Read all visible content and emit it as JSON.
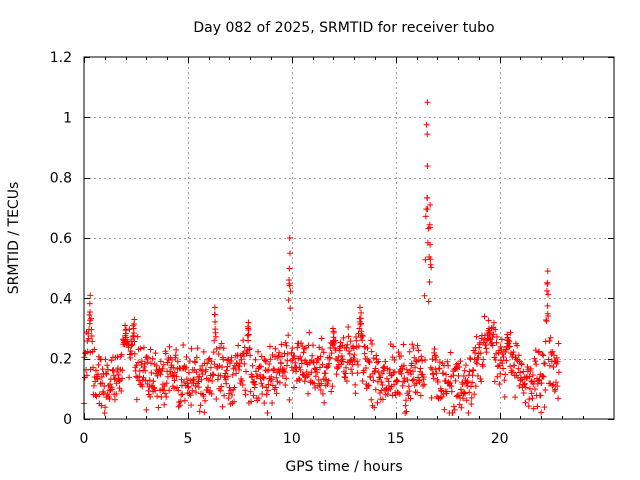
{
  "chart_data": {
    "type": "scatter",
    "title": "Day 082 of 2025, SRMTID for receiver tubo",
    "xlabel": "GPS time / hours",
    "ylabel": "SRMTID / TECUs",
    "xlim": [
      0,
      25.5
    ],
    "ylim": [
      0,
      1.2
    ],
    "xticks": [
      0,
      5,
      10,
      15,
      20
    ],
    "xtick_labels": [
      "0",
      "5",
      "10",
      "15",
      "20"
    ],
    "yticks": [
      0,
      0.2,
      0.4,
      0.6,
      0.8,
      1.0,
      1.2
    ],
    "ytick_labels": [
      "0",
      "0.2",
      "0.4",
      "0.6",
      "0.8",
      "1",
      "1.2"
    ],
    "grid": true,
    "marker": "+",
    "color": "#ff0000",
    "series": [
      {
        "name": "SRMTID",
        "profile": [
          [
            0.0,
            0.17
          ],
          [
            0.2,
            0.2
          ],
          [
            0.4,
            0.16
          ],
          [
            0.7,
            0.14
          ],
          [
            1.0,
            0.12
          ],
          [
            1.3,
            0.13
          ],
          [
            1.6,
            0.15
          ],
          [
            2.0,
            0.2
          ],
          [
            2.3,
            0.22
          ],
          [
            2.7,
            0.16
          ],
          [
            3.0,
            0.14
          ],
          [
            3.5,
            0.15
          ],
          [
            4.0,
            0.14
          ],
          [
            4.5,
            0.15
          ],
          [
            5.0,
            0.13
          ],
          [
            5.5,
            0.13
          ],
          [
            6.0,
            0.14
          ],
          [
            6.3,
            0.17
          ],
          [
            6.6,
            0.15
          ],
          [
            7.0,
            0.14
          ],
          [
            7.5,
            0.17
          ],
          [
            8.0,
            0.15
          ],
          [
            8.5,
            0.14
          ],
          [
            9.0,
            0.14
          ],
          [
            9.5,
            0.17
          ],
          [
            10.0,
            0.18
          ],
          [
            10.5,
            0.2
          ],
          [
            11.0,
            0.17
          ],
          [
            11.5,
            0.15
          ],
          [
            12.0,
            0.18
          ],
          [
            12.5,
            0.19
          ],
          [
            13.0,
            0.2
          ],
          [
            13.3,
            0.22
          ],
          [
            13.6,
            0.17
          ],
          [
            14.0,
            0.15
          ],
          [
            14.5,
            0.16
          ],
          [
            15.0,
            0.14
          ],
          [
            15.5,
            0.13
          ],
          [
            16.0,
            0.15
          ],
          [
            16.5,
            0.17
          ],
          [
            17.0,
            0.13
          ],
          [
            17.5,
            0.12
          ],
          [
            18.0,
            0.11
          ],
          [
            18.3,
            0.08
          ],
          [
            18.6,
            0.12
          ],
          [
            19.0,
            0.22
          ],
          [
            19.5,
            0.24
          ],
          [
            20.0,
            0.19
          ],
          [
            20.5,
            0.2
          ],
          [
            21.0,
            0.16
          ],
          [
            21.5,
            0.12
          ],
          [
            22.0,
            0.14
          ],
          [
            22.5,
            0.19
          ],
          [
            22.85,
            0.14
          ]
        ],
        "spikes": [
          {
            "x": 0.3,
            "y": 0.41,
            "width": 0.12
          },
          {
            "x": 2.0,
            "y": 0.31,
            "width": 0.15
          },
          {
            "x": 2.4,
            "y": 0.33,
            "width": 0.08
          },
          {
            "x": 6.3,
            "y": 0.37,
            "width": 0.06
          },
          {
            "x": 7.9,
            "y": 0.32,
            "width": 0.1
          },
          {
            "x": 9.9,
            "y": 0.6,
            "width": 0.08
          },
          {
            "x": 12.0,
            "y": 0.3,
            "width": 0.1
          },
          {
            "x": 13.3,
            "y": 0.37,
            "width": 0.1
          },
          {
            "x": 16.5,
            "y": 1.05,
            "width": 0.12
          },
          {
            "x": 16.65,
            "y": 0.71,
            "width": 0.1
          },
          {
            "x": 19.5,
            "y": 0.3,
            "width": 0.15
          },
          {
            "x": 20.4,
            "y": 0.28,
            "width": 0.15
          },
          {
            "x": 22.3,
            "y": 0.49,
            "width": 0.1
          }
        ],
        "x_start": 0.0,
        "x_end": 22.85,
        "n_points": 1150,
        "spread": 0.07,
        "y_min": 0.02
      }
    ]
  }
}
